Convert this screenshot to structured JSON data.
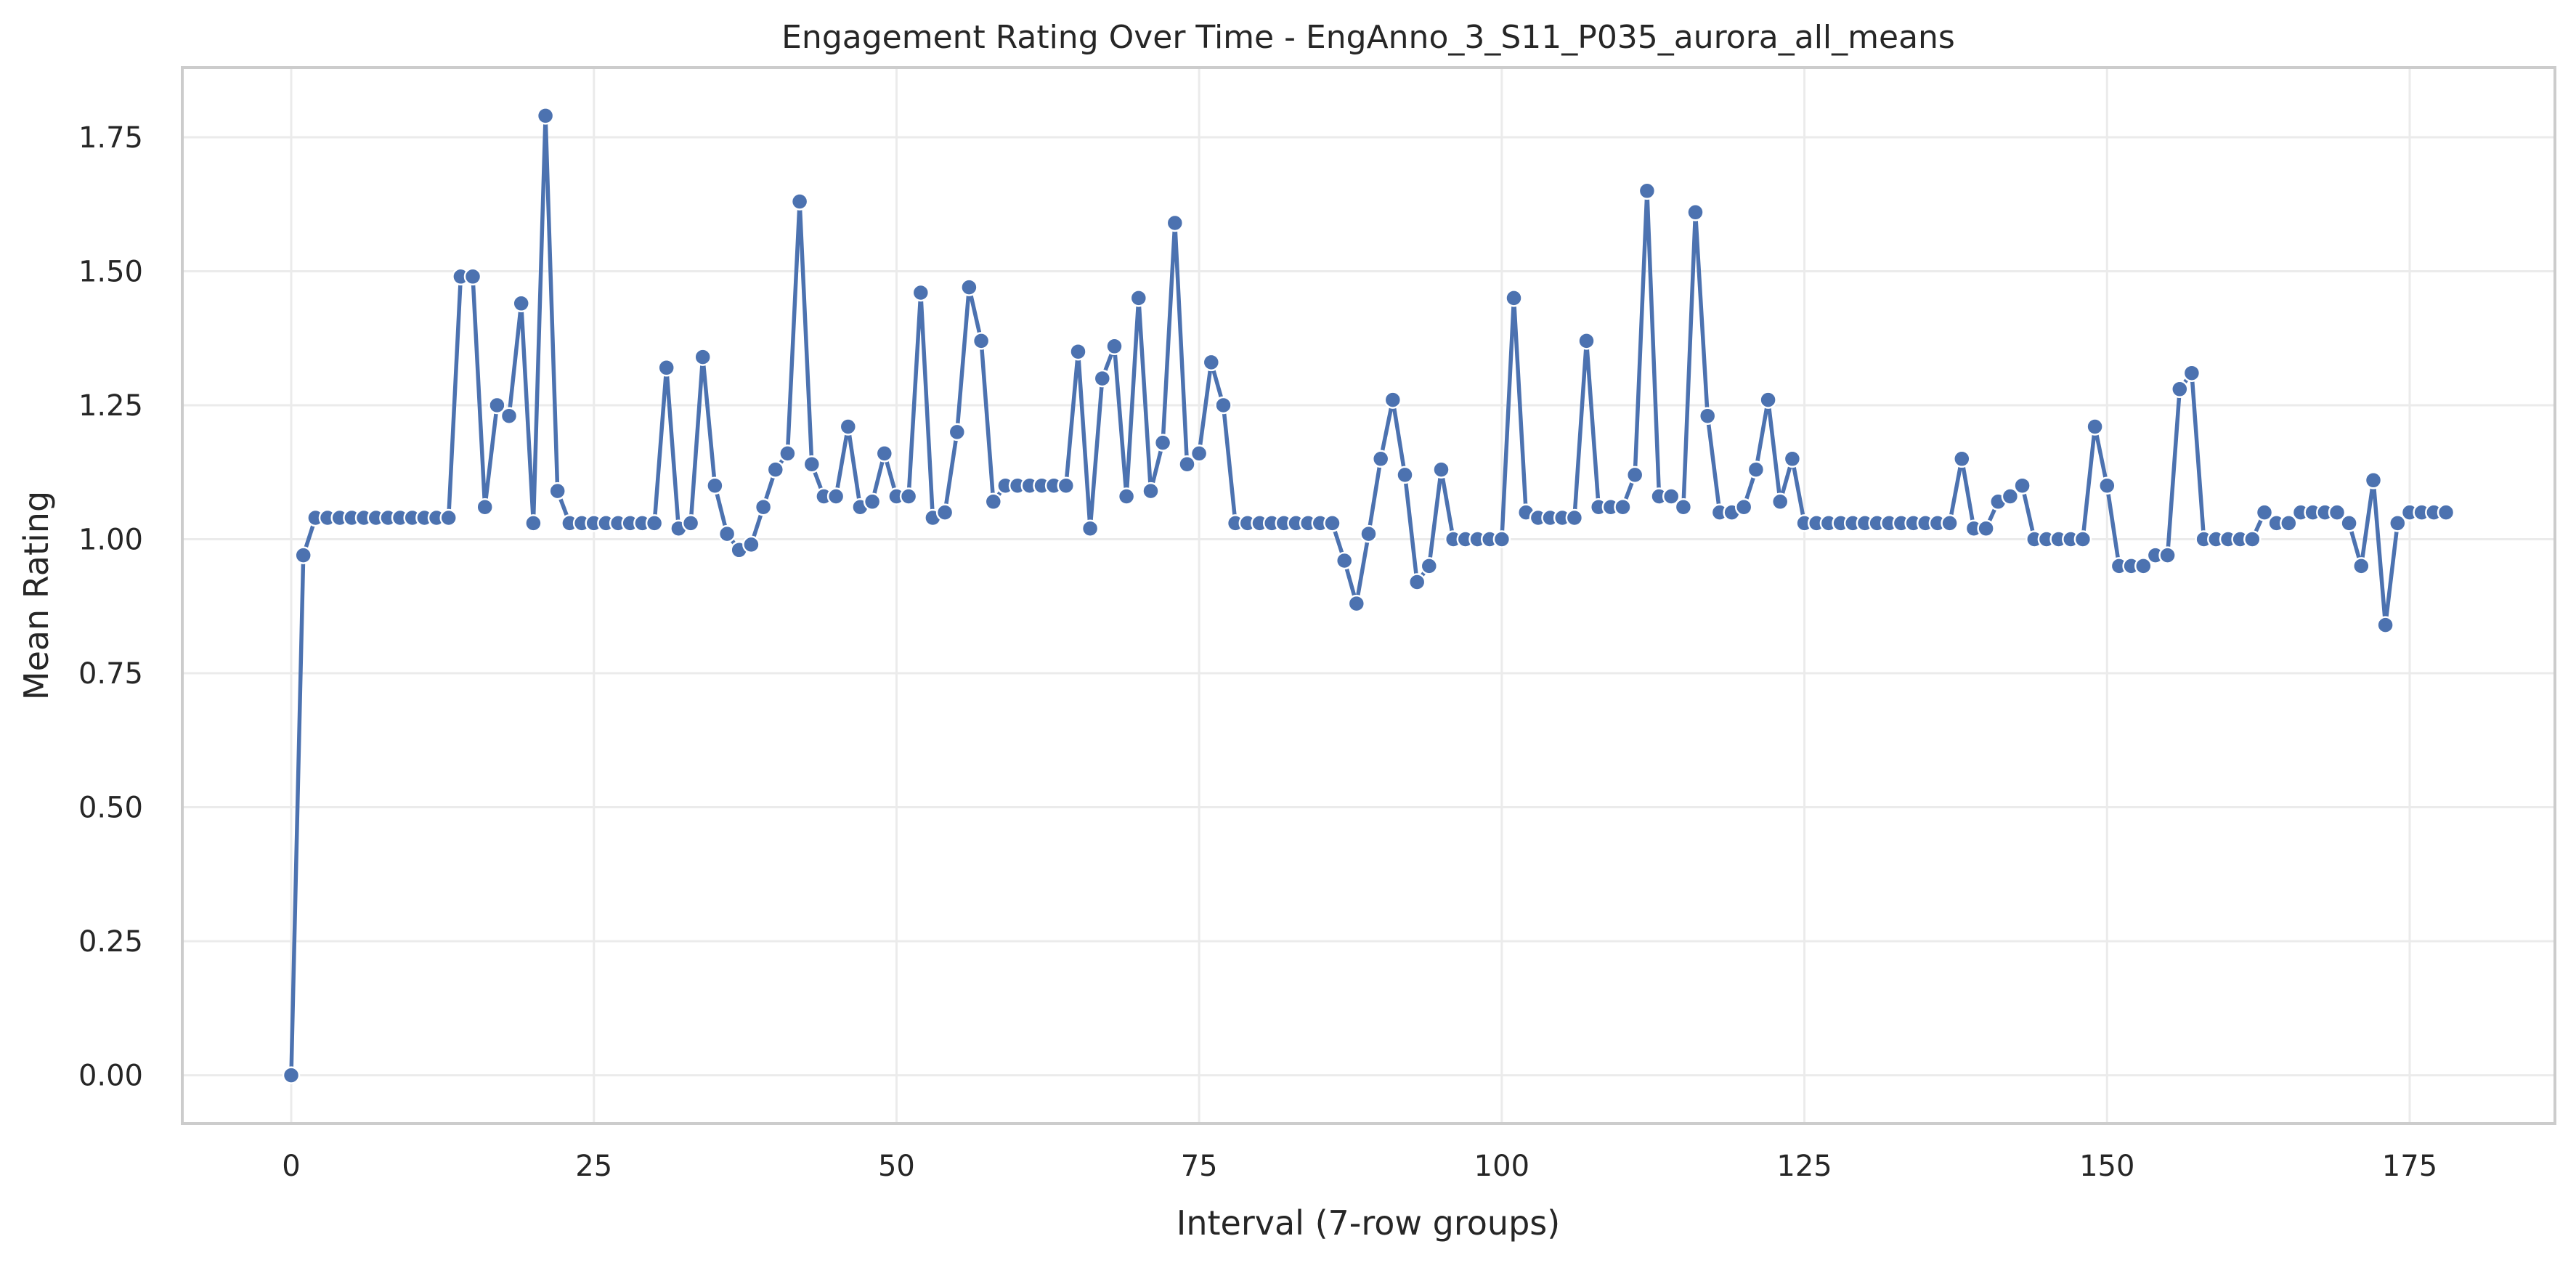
{
  "chart_data": {
    "type": "line",
    "title": "Engagement Rating Over Time -  EngAnno_3_S11_P035_aurora_all_means",
    "xlabel": "Interval (7-row groups)",
    "ylabel": "Mean Rating",
    "xlim": [
      -9,
      187
    ],
    "ylim": [
      -0.09,
      1.88
    ],
    "x_ticks": [
      0,
      25,
      50,
      75,
      100,
      125,
      150,
      175
    ],
    "y_ticks": [
      0.0,
      0.25,
      0.5,
      0.75,
      1.0,
      1.25,
      1.5,
      1.75
    ],
    "y_tick_labels": [
      "0.00",
      "0.25",
      "0.50",
      "0.75",
      "1.00",
      "1.25",
      "1.50",
      "1.75"
    ],
    "grid": true,
    "line_color": "#4c72b0",
    "markers": true,
    "series": [
      {
        "x_start": 0,
        "x_step": 1,
        "values": [
          0.0,
          0.97,
          1.04,
          1.04,
          1.04,
          1.04,
          1.04,
          1.04,
          1.04,
          1.04,
          1.04,
          1.04,
          1.04,
          1.04,
          1.49,
          1.49,
          1.06,
          1.25,
          1.23,
          1.44,
          1.03,
          1.79,
          1.09,
          1.03,
          1.03,
          1.03,
          1.03,
          1.03,
          1.03,
          1.03,
          1.03,
          1.32,
          1.02,
          1.03,
          1.34,
          1.1,
          1.01,
          0.98,
          0.99,
          1.06,
          1.13,
          1.16,
          1.63,
          1.14,
          1.08,
          1.08,
          1.21,
          1.06,
          1.07,
          1.16,
          1.08,
          1.08,
          1.46,
          1.04,
          1.05,
          1.2,
          1.47,
          1.37,
          1.07,
          1.1,
          1.1,
          1.1,
          1.1,
          1.1,
          1.1,
          1.35,
          1.02,
          1.3,
          1.36,
          1.08,
          1.45,
          1.09,
          1.18,
          1.59,
          1.14,
          1.16,
          1.33,
          1.25,
          1.03,
          1.03,
          1.03,
          1.03,
          1.03,
          1.03,
          1.03,
          1.03,
          1.03,
          0.96,
          0.88,
          1.01,
          1.15,
          1.26,
          1.12,
          0.92,
          0.95,
          1.13,
          1.0,
          1.0,
          1.0,
          1.0,
          1.0,
          1.45,
          1.05,
          1.04,
          1.04,
          1.04,
          1.04,
          1.37,
          1.06,
          1.06,
          1.06,
          1.12,
          1.65,
          1.08,
          1.08,
          1.06,
          1.61,
          1.23,
          1.05,
          1.05,
          1.06,
          1.13,
          1.26,
          1.07,
          1.15,
          1.03,
          1.03,
          1.03,
          1.03,
          1.03,
          1.03,
          1.03,
          1.03,
          1.03,
          1.03,
          1.03,
          1.03,
          1.03,
          1.15,
          1.02,
          1.02,
          1.07,
          1.08,
          1.1,
          1.0,
          1.0,
          1.0,
          1.0,
          1.0,
          1.21,
          1.1,
          0.95,
          0.95,
          0.95,
          0.97,
          0.97,
          1.28,
          1.31,
          1.0,
          1.0,
          1.0,
          1.0,
          1.0,
          1.05,
          1.03,
          1.03,
          1.05,
          1.05,
          1.05,
          1.05,
          1.03,
          0.95,
          1.11,
          0.84,
          1.03,
          1.05,
          1.05,
          1.05,
          1.05
        ]
      }
    ]
  }
}
